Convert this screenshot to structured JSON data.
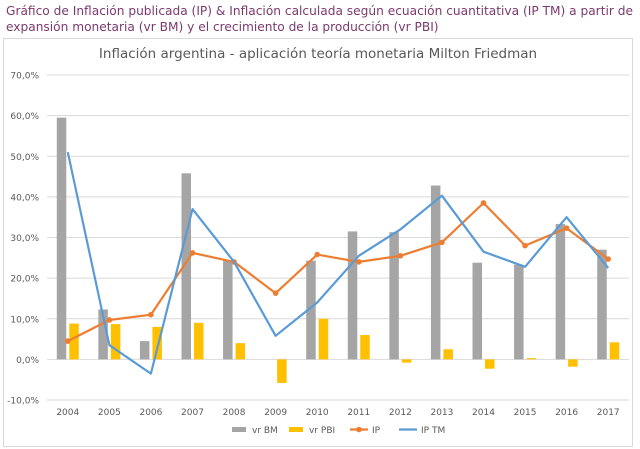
{
  "caption": {
    "line1": "Gráfico de Inflación publicada (IP) & Inflación calculada según ecuación cuantitativa (IP TM) a partir de",
    "line2": "expansión monetaria (vr BM) y el crecimiento de la producción (vr PBI)"
  },
  "chart_data": {
    "type": "bar",
    "title": "Inflación argentina - aplicación teoría monetaria Milton Friedman",
    "categories": [
      "2004",
      "2005",
      "2006",
      "2007",
      "2008",
      "2009",
      "2010",
      "2011",
      "2012",
      "2013",
      "2014",
      "2015",
      "2016",
      "2017"
    ],
    "ylim": [
      -10,
      70
    ],
    "yticks": [
      -10,
      0,
      10,
      20,
      30,
      40,
      50,
      60,
      70
    ],
    "ytick_labels": [
      "-10,0%",
      "0,0%",
      "10,0%",
      "20,0%",
      "30,0%",
      "40,0%",
      "50,0%",
      "60,0%",
      "70,0%"
    ],
    "series": [
      {
        "name": "vr BM",
        "kind": "bar",
        "color": "#a5a5a5",
        "values": [
          59.5,
          12.3,
          4.5,
          45.8,
          24.3,
          0,
          24.3,
          31.5,
          31.3,
          42.8,
          23.8,
          23.3,
          33.3,
          27.0
        ]
      },
      {
        "name": "vr PBI",
        "kind": "bar",
        "color": "#ffc000",
        "values": [
          8.8,
          8.7,
          8.0,
          9.0,
          4.0,
          -5.8,
          10.0,
          6.0,
          -0.8,
          2.5,
          -2.3,
          0.3,
          -1.8,
          4.2
        ]
      },
      {
        "name": "IP",
        "kind": "line-marker",
        "color": "#ed7d31",
        "values": [
          4.5,
          9.7,
          11.0,
          26.2,
          24.0,
          16.3,
          25.8,
          24.0,
          25.5,
          28.8,
          38.5,
          28.0,
          32.3,
          24.7
        ]
      },
      {
        "name": "IP TM",
        "kind": "line",
        "color": "#5b9bd5",
        "values": [
          51.0,
          3.5,
          -3.5,
          37.0,
          24.0,
          5.8,
          14.0,
          25.5,
          32.0,
          40.3,
          26.5,
          22.8,
          35.0,
          22.5
        ]
      }
    ],
    "legend_position": "bottom",
    "grid": true
  }
}
